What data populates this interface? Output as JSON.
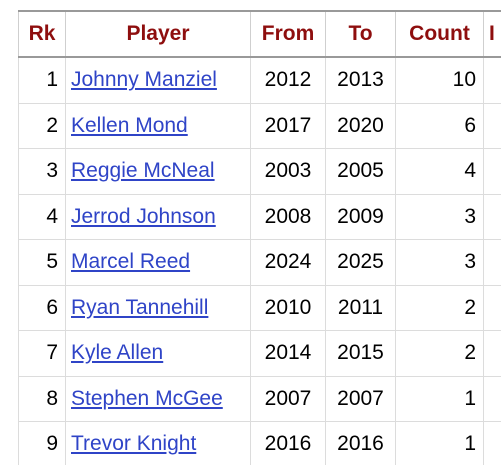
{
  "headers": {
    "rk": "Rk",
    "player": "Player",
    "from": "From",
    "to": "To",
    "count": "Count",
    "extra": "I"
  },
  "rows": [
    {
      "rk": "1",
      "player": "Johnny Manziel",
      "from": "2012",
      "to": "2013",
      "count": "10"
    },
    {
      "rk": "2",
      "player": "Kellen Mond",
      "from": "2017",
      "to": "2020",
      "count": "6"
    },
    {
      "rk": "3",
      "player": "Reggie McNeal",
      "from": "2003",
      "to": "2005",
      "count": "4"
    },
    {
      "rk": "4",
      "player": "Jerrod Johnson",
      "from": "2008",
      "to": "2009",
      "count": "3"
    },
    {
      "rk": "5",
      "player": "Marcel Reed",
      "from": "2024",
      "to": "2025",
      "count": "3"
    },
    {
      "rk": "6",
      "player": "Ryan Tannehill",
      "from": "2010",
      "to": "2011",
      "count": "2"
    },
    {
      "rk": "7",
      "player": "Kyle Allen",
      "from": "2014",
      "to": "2015",
      "count": "2"
    },
    {
      "rk": "8",
      "player": "Stephen McGee",
      "from": "2007",
      "to": "2007",
      "count": "1"
    },
    {
      "rk": "9",
      "player": "Trevor Knight",
      "from": "2016",
      "to": "2016",
      "count": "1"
    }
  ],
  "colors": {
    "header_text": "#8e0e0e",
    "link": "#2f44c7"
  }
}
